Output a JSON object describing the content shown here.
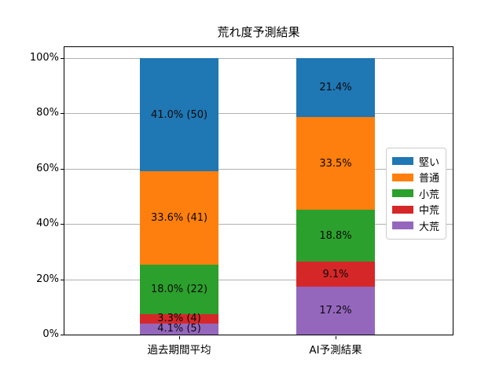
{
  "figure": {
    "background": "#ffffff",
    "text_color": "#000000",
    "grid_color": "#b0b0b0"
  },
  "chart_data": {
    "type": "bar",
    "stacked": true,
    "orientation": "vertical",
    "title": "荒れ度予測結果",
    "categories": [
      "過去期間平均",
      "AI予測結果"
    ],
    "series": [
      {
        "name": "堅い",
        "color": "#1f77b4",
        "values": [
          41.0,
          21.4
        ],
        "labels": [
          "41.0% (50)",
          "21.4%"
        ]
      },
      {
        "name": "普通",
        "color": "#ff7f0e",
        "values": [
          33.6,
          33.5
        ],
        "labels": [
          "33.6% (41)",
          "33.5%"
        ]
      },
      {
        "name": "小荒",
        "color": "#2ca02c",
        "values": [
          18.0,
          18.8
        ],
        "labels": [
          "18.0% (22)",
          "18.8%"
        ]
      },
      {
        "name": "中荒",
        "color": "#d62728",
        "values": [
          3.3,
          9.1
        ],
        "labels": [
          "3.3% (4)",
          "9.1%"
        ]
      },
      {
        "name": "大荒",
        "color": "#9467bd",
        "values": [
          4.1,
          17.2
        ],
        "labels": [
          "4.1% (5)",
          "17.2%"
        ]
      }
    ],
    "counts_shown_for": "過去期間平均",
    "y_ticks": [
      {
        "value": 100,
        "label": "100%"
      },
      {
        "value": 80,
        "label": "80%"
      },
      {
        "value": 60,
        "label": "60%"
      },
      {
        "value": 40,
        "label": "40%"
      },
      {
        "value": 20,
        "label": "20%"
      },
      {
        "value": 0,
        "label": "0%"
      }
    ],
    "ylim": [
      0,
      100
    ],
    "xlabel": "",
    "ylabel": "",
    "grid": true,
    "legend_position": "center right",
    "legend_entries": [
      "堅い",
      "普通",
      "小荒",
      "中荒",
      "大荒"
    ]
  }
}
